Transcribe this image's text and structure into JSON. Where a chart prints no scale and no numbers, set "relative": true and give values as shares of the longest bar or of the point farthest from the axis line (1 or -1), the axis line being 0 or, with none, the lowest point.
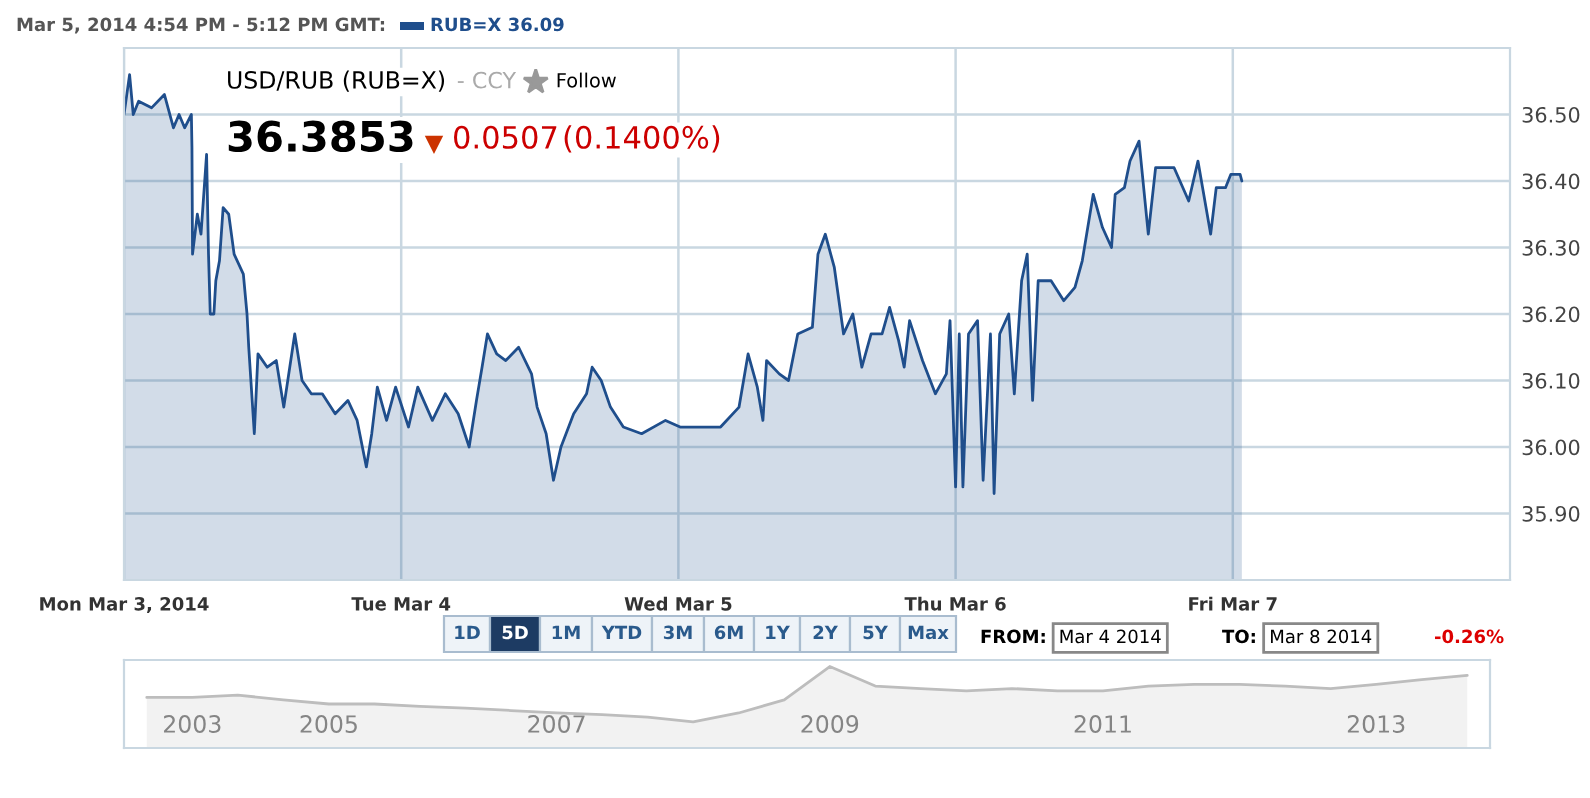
{
  "chart_data": [
    {
      "type": "area",
      "grid": true,
      "x": [
        "2014-03-03T00:00",
        "2014-03-03T00:29",
        "2014-03-03T00:48",
        "2014-03-03T01:16",
        "2014-03-03T02:23",
        "2014-03-03T03:30",
        "2014-03-03T04:17",
        "2014-03-03T04:46",
        "2014-03-03T05:15",
        "2014-03-03T05:50",
        "2014-03-03T05:53",
        "2014-03-03T05:56",
        "2014-03-03T06:21",
        "2014-03-03T06:40",
        "2014-03-03T07:09",
        "2014-03-03T07:19",
        "2014-03-03T07:28",
        "2014-03-03T07:47",
        "2014-03-03T07:57",
        "2014-03-03T08:16",
        "2014-03-03T08:35",
        "2014-03-03T09:04",
        "2014-03-03T09:32",
        "2014-03-03T10:20",
        "2014-03-03T10:39",
        "2014-03-03T10:48",
        "2014-03-03T11:17",
        "2014-03-03T11:36",
        "2014-03-03T12:24",
        "2014-03-03T13:11",
        "2014-03-03T13:50",
        "2014-03-03T14:47",
        "2014-03-03T15:25",
        "2014-03-03T16:13",
        "2014-03-03T17:10",
        "2014-03-03T18:17",
        "2014-03-03T19:23",
        "2014-03-03T20:11",
        "2014-03-03T20:59",
        "2014-03-03T21:27",
        "2014-03-03T21:56",
        "2014-03-03T22:44",
        "2014-03-03T23:31",
        "2014-03-04T00:38",
        "2014-03-04T01:26",
        "2014-03-04T02:42",
        "2014-03-04T03:49",
        "2014-03-04T04:56",
        "2014-03-04T05:53",
        "2014-03-04T06:31",
        "2014-03-04T07:00",
        "2014-03-04T07:28",
        "2014-03-04T08:16",
        "2014-03-04T09:03",
        "2014-03-04T10:10",
        "2014-03-04T11:17",
        "2014-03-04T11:46",
        "2014-03-04T12:33",
        "2014-03-04T13:11",
        "2014-03-04T13:50",
        "2014-03-04T14:56",
        "2014-03-04T16:03",
        "2014-03-04T16:32",
        "2014-03-04T17:19",
        "2014-03-04T18:07",
        "2014-03-04T19:14",
        "2014-03-04T20:49",
        "2014-03-04T22:53",
        "2014-03-05T00:09",
        "2014-03-05T00:57",
        "2014-03-05T03:39",
        "2014-03-05T05:15",
        "2014-03-05T06:02",
        "2014-03-05T06:50",
        "2014-03-05T07:19",
        "2014-03-05T07:38",
        "2014-03-05T08:44",
        "2014-03-05T09:32",
        "2014-03-05T10:20",
        "2014-03-05T11:36",
        "2014-03-05T12:05",
        "2014-03-05T12:43",
        "2014-03-05T13:30",
        "2014-03-05T14:18",
        "2014-03-05T15:06",
        "2014-03-05T15:53",
        "2014-03-05T16:41",
        "2014-03-05T17:38",
        "2014-03-05T18:17",
        "2014-03-05T19:04",
        "2014-03-05T19:33",
        "2014-03-05T20:01",
        "2014-03-05T21:08",
        "2014-03-05T22:15",
        "2014-03-05T23:12",
        "2014-03-05T23:31",
        "2014-03-06T00:00",
        "2014-03-06T00:19",
        "2014-03-06T00:38",
        "2014-03-06T01:07",
        "2014-03-06T01:54",
        "2014-03-06T02:23",
        "2014-03-06T03:01",
        "2014-03-06T03:20",
        "2014-03-06T03:49",
        "2014-03-06T04:36",
        "2014-03-06T05:05",
        "2014-03-06T05:43",
        "2014-03-06T06:12",
        "2014-03-06T06:40",
        "2014-03-06T07:09",
        "2014-03-06T08:16",
        "2014-03-06T09:22",
        "2014-03-06T10:20",
        "2014-03-06T10:58",
        "2014-03-06T11:55",
        "2014-03-06T12:43",
        "2014-03-06T13:30",
        "2014-03-06T13:49",
        "2014-03-06T14:37",
        "2014-03-06T15:06",
        "2014-03-06T15:53",
        "2014-03-06T16:41",
        "2014-03-06T17:19",
        "2014-03-06T18:55",
        "2014-03-06T20:11",
        "2014-03-06T20:59",
        "2014-03-06T22:05",
        "2014-03-06T22:34",
        "2014-03-06T23:22",
        "2014-03-06T23:50",
        "2014-03-07T00:38",
        "2014-03-07T00:47"
      ],
      "series": [
        {
          "color": "#1f4e8c",
          "values": [
            36.5,
            36.56,
            36.5,
            36.52,
            36.51,
            36.53,
            36.48,
            36.5,
            36.48,
            36.5,
            36.45,
            36.29,
            36.35,
            36.32,
            36.44,
            36.29,
            36.2,
            36.2,
            36.25,
            36.28,
            36.36,
            36.35,
            36.29,
            36.26,
            36.2,
            36.15,
            36.02,
            36.14,
            36.12,
            36.13,
            36.06,
            36.17,
            36.1,
            36.08,
            36.08,
            36.05,
            36.07,
            36.04,
            35.97,
            36.02,
            36.09,
            36.04,
            36.09,
            36.03,
            36.09,
            36.04,
            36.08,
            36.05,
            36.0,
            36.07,
            36.12,
            36.17,
            36.14,
            36.13,
            36.15,
            36.11,
            36.06,
            36.02,
            35.95,
            36.0,
            36.05,
            36.08,
            36.12,
            36.1,
            36.06,
            36.03,
            36.02,
            36.04,
            36.03,
            36.03,
            36.03,
            36.06,
            36.14,
            36.09,
            36.04,
            36.13,
            36.11,
            36.1,
            36.17,
            36.18,
            36.29,
            36.32,
            36.27,
            36.17,
            36.2,
            36.12,
            36.17,
            36.17,
            36.21,
            36.16,
            36.12,
            36.19,
            36.13,
            36.08,
            36.11,
            36.19,
            35.94,
            36.17,
            35.94,
            36.17,
            36.19,
            35.95,
            36.17,
            35.93,
            36.17,
            36.2,
            36.08,
            36.25,
            36.29,
            36.07,
            36.25,
            36.25,
            36.22,
            36.24,
            36.28,
            36.38,
            36.33,
            36.3,
            36.38,
            36.39,
            36.43,
            36.46,
            36.32,
            36.42,
            36.42,
            36.37,
            36.43,
            36.32,
            36.39,
            36.39,
            36.41,
            36.41,
            36.4
          ]
        }
      ],
      "xlim": [
        "2014-03-03T00:00",
        "2014-03-08T00:00"
      ],
      "xticks": [
        {
          "value": "2014-03-03",
          "label": "Mon Mar 3, 2014"
        },
        {
          "value": "2014-03-04",
          "label": "Tue Mar 4"
        },
        {
          "value": "2014-03-05",
          "label": "Wed Mar 5"
        },
        {
          "value": "2014-03-06",
          "label": "Thu Mar 6"
        },
        {
          "value": "2014-03-07",
          "label": "Fri Mar 7"
        }
      ],
      "ylim": [
        35.8,
        36.6
      ],
      "yticks": [
        {
          "value": 35.9,
          "label": "35.90"
        },
        {
          "value": 36.0,
          "label": "36.00"
        },
        {
          "value": 36.1,
          "label": "36.10"
        },
        {
          "value": 36.2,
          "label": "36.20"
        },
        {
          "value": 36.3,
          "label": "36.30"
        },
        {
          "value": 36.4,
          "label": "36.40"
        },
        {
          "value": 36.5,
          "label": "36.50"
        }
      ],
      "annotations": [
        "Mar 5, 2014 4:54 PM - 5:12 PM GMT:",
        "RUB=X 36.09",
        "USD/RUB (RUB=X)",
        "- CCY",
        "Follow",
        "36.3853",
        "0.0507",
        "(0.1400%)",
        "1D",
        "5D",
        "1M",
        "YTD",
        "3M",
        "6M",
        "1Y",
        "2Y",
        "5Y",
        "Max",
        "FROM:",
        "Mar 4 2014",
        "TO:",
        "Mar 8 2014",
        "-0.26%"
      ]
    },
    {
      "type": "area",
      "relative": true,
      "categories": [
        null,
        "2003",
        null,
        null,
        "2005",
        null,
        null,
        null,
        null,
        "2007",
        null,
        null,
        null,
        null,
        null,
        "2009",
        null,
        null,
        null,
        null,
        null,
        "2011",
        null,
        null,
        null,
        null,
        null,
        "2013",
        null,
        null
      ],
      "series": [
        {
          "color": "#bdbdbd",
          "values": [
            0.62,
            0.62,
            0.65,
            0.59,
            0.54,
            0.54,
            0.51,
            0.49,
            0.46,
            0.43,
            0.41,
            0.38,
            0.32,
            0.43,
            0.59,
            1,
            0.76,
            0.73,
            0.7,
            0.73,
            0.7,
            0.7,
            0.76,
            0.78,
            0.78,
            0.76,
            0.73,
            0.78,
            0.84,
            0.89
          ]
        }
      ]
    }
  ]
}
